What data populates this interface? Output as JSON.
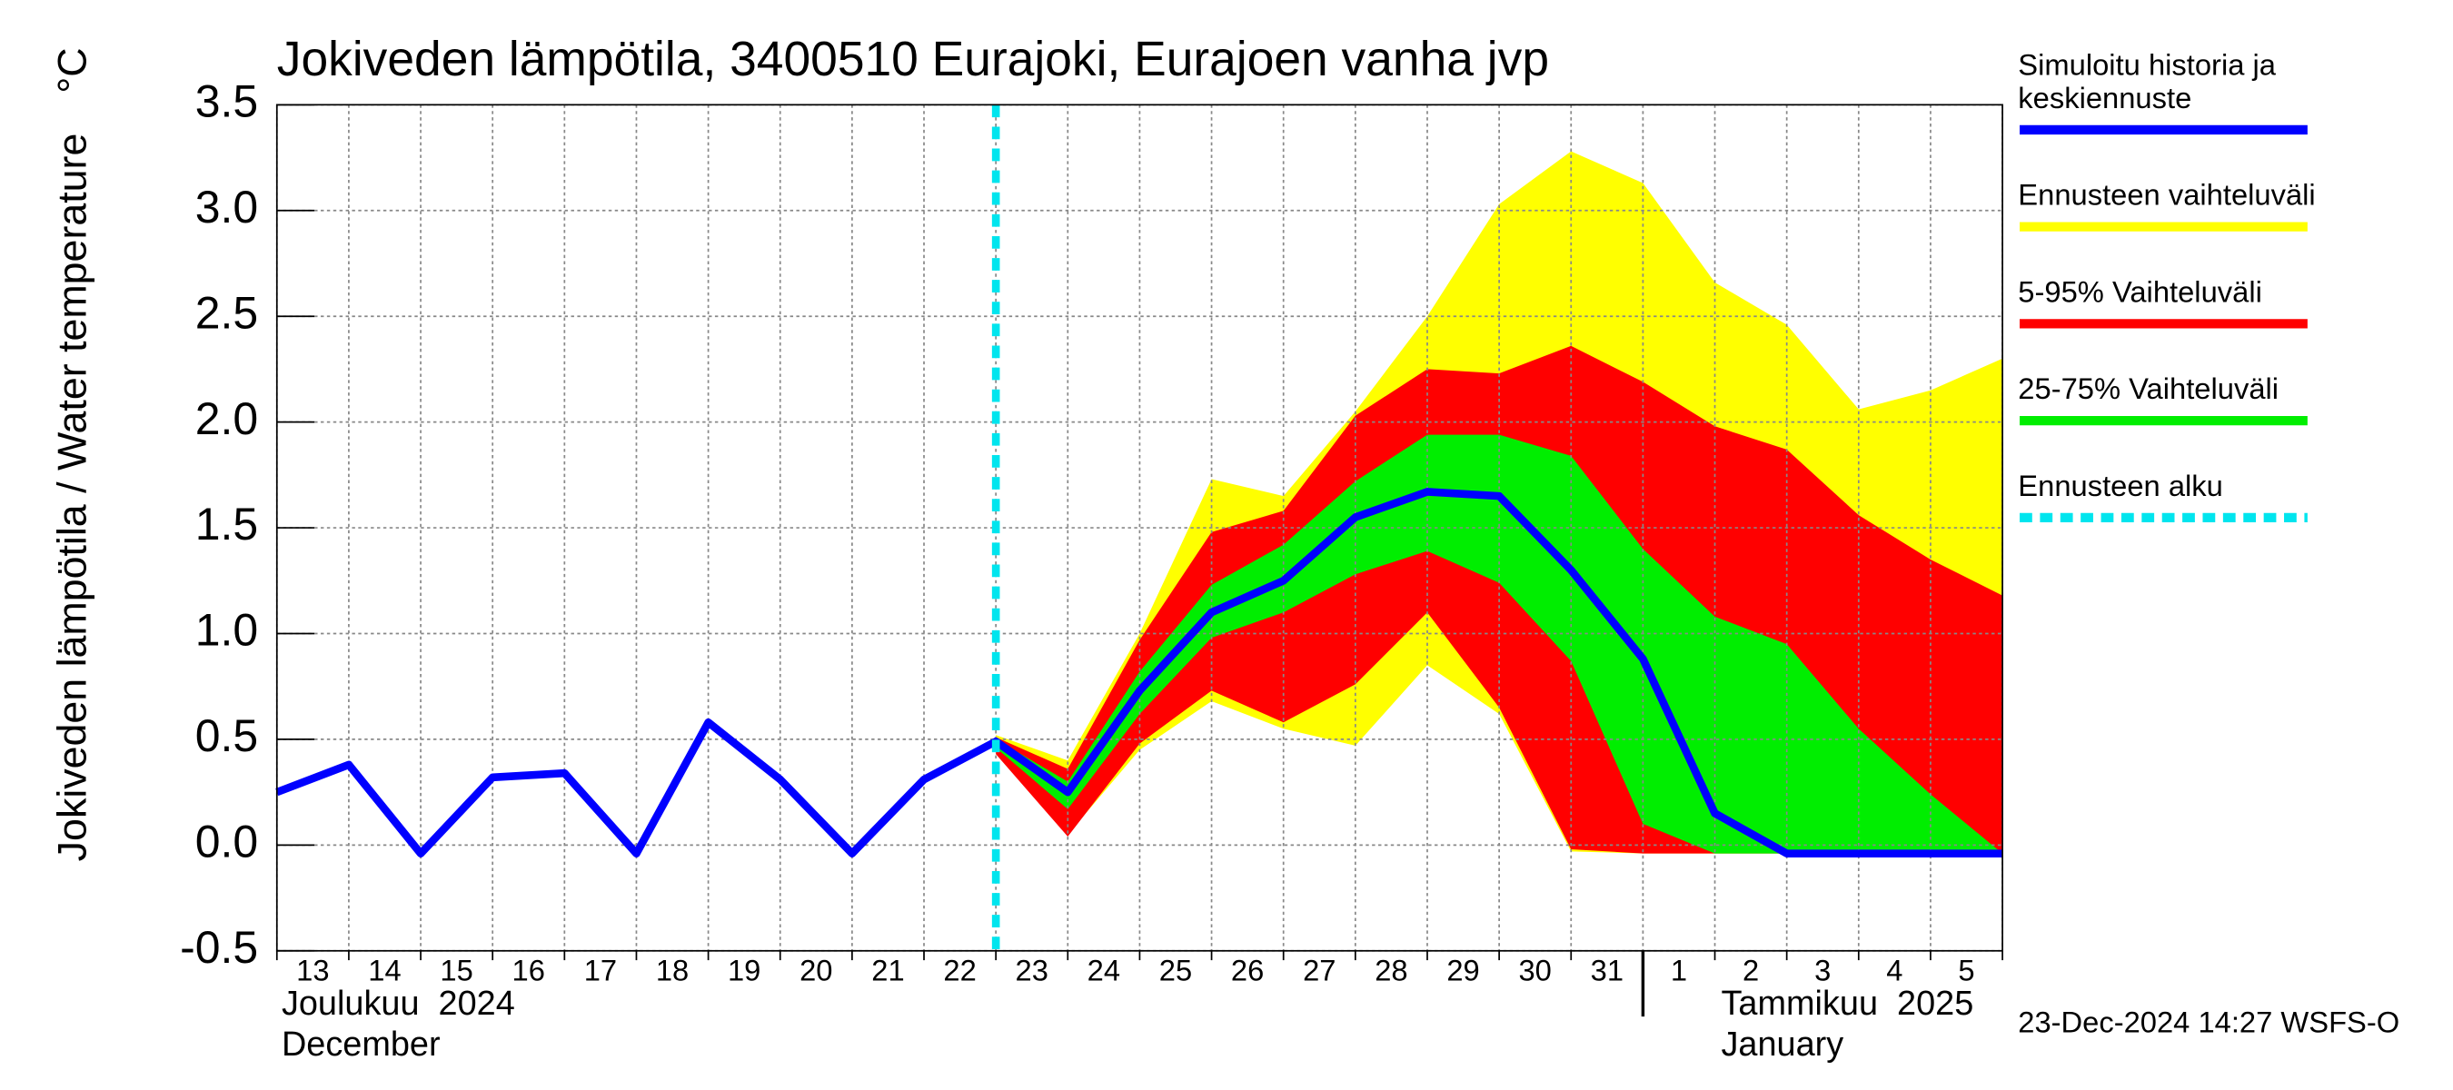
{
  "chart_data": {
    "type": "band-line",
    "title": "Jokiveden lämpötila, 3400510 Eurajoki, Eurajoen vanha jvp",
    "y_label": "Jokiveden lämpötila / Water temperature",
    "y_unit": "°C",
    "month_labels": [
      "Joulukuu  2024",
      "December",
      "Tammikuu  2025",
      "January"
    ],
    "timestamp": "23-Dec-2024 14:27 WSFS-O",
    "categories": [
      "13",
      "14",
      "15",
      "16",
      "17",
      "18",
      "19",
      "20",
      "21",
      "22",
      "23",
      "24",
      "25",
      "26",
      "27",
      "28",
      "29",
      "30",
      "31",
      "1",
      "2",
      "3",
      "4",
      "5",
      null
    ],
    "forecast_start": "23",
    "month_break": "1",
    "ylim": [
      -0.5,
      3.5
    ],
    "yticks": [
      -0.5,
      {
        "value": 0,
        "label": "0.0"
      },
      0.5,
      {
        "value": 1,
        "label": "1.0"
      },
      1.5,
      {
        "value": 2,
        "label": "2.0"
      },
      2.5,
      {
        "value": 3,
        "label": "3.0"
      },
      3.5
    ],
    "grid": true,
    "series": [
      {
        "name": "Ennusteen vaihteluväli",
        "color": "#ffff00",
        "kind": "band",
        "values": [
          null,
          null,
          null,
          null,
          null,
          null,
          null,
          null,
          null,
          null,
          0.52,
          0.4,
          1.0,
          1.73,
          1.65,
          2.05,
          2.5,
          3.03,
          3.28,
          3.13,
          2.66,
          2.46,
          2.06,
          2.15,
          2.3
        ],
        "lower": [
          null,
          null,
          null,
          null,
          null,
          null,
          null,
          null,
          null,
          null,
          0.45,
          0.05,
          0.45,
          0.68,
          0.55,
          0.47,
          0.85,
          0.62,
          -0.03,
          -0.04,
          -0.04,
          -0.04,
          -0.04,
          -0.04,
          -0.04
        ]
      },
      {
        "name": "5-95% Vaihteluväli",
        "color": "#ff0000",
        "kind": "band",
        "values": [
          null,
          null,
          null,
          null,
          null,
          null,
          null,
          null,
          null,
          null,
          0.51,
          0.36,
          0.97,
          1.48,
          1.58,
          2.03,
          2.25,
          2.23,
          2.36,
          2.19,
          1.98,
          1.87,
          1.56,
          1.35,
          1.18
        ],
        "lower": [
          null,
          null,
          null,
          null,
          null,
          null,
          null,
          null,
          null,
          null,
          0.43,
          0.04,
          0.48,
          0.73,
          0.58,
          0.76,
          1.1,
          0.65,
          -0.02,
          -0.04,
          -0.04,
          -0.04,
          -0.04,
          -0.04,
          -0.04
        ]
      },
      {
        "name": "25-75% Vaihteluväli",
        "color": "#00ee00",
        "kind": "band",
        "values": [
          null,
          null,
          null,
          null,
          null,
          null,
          null,
          null,
          null,
          null,
          0.5,
          0.3,
          0.82,
          1.23,
          1.42,
          1.72,
          1.94,
          1.94,
          1.84,
          1.4,
          1.08,
          0.95,
          0.55,
          0.24,
          -0.04
        ],
        "lower": [
          null,
          null,
          null,
          null,
          null,
          null,
          null,
          null,
          null,
          null,
          0.46,
          0.17,
          0.62,
          0.98,
          1.1,
          1.28,
          1.39,
          1.24,
          0.87,
          0.1,
          -0.04,
          -0.04,
          -0.04,
          -0.04,
          -0.04
        ]
      },
      {
        "name": "Simuloitu historia ja keskiennuste",
        "color": "#0000ff",
        "kind": "line",
        "values": [
          0.25,
          0.38,
          -0.04,
          0.32,
          0.34,
          -0.04,
          0.58,
          0.31,
          -0.04,
          0.31,
          0.49,
          0.25,
          0.73,
          1.1,
          1.25,
          1.55,
          1.67,
          1.65,
          1.3,
          0.88,
          0.15,
          -0.04,
          -0.04,
          -0.04,
          -0.04
        ]
      }
    ],
    "forecast_line": {
      "name": "Ennusteen alku",
      "color": "#00e5ee"
    },
    "legend_order": [
      3,
      0,
      1,
      2
    ]
  }
}
